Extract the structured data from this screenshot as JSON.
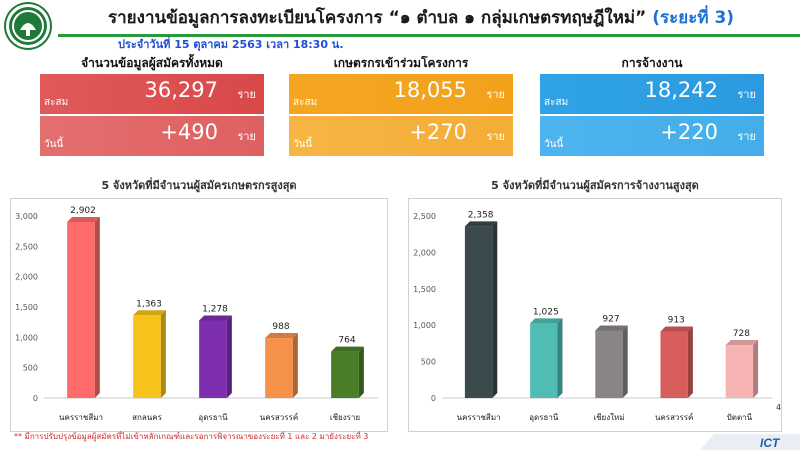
{
  "header": {
    "title": "รายงานข้อมูลการลงทะเบียนโครงการ “๑ ตำบล ๑ กลุ่มเกษตรทฤษฎีใหม่”",
    "phase": "(ระยะที่ 3)",
    "subtitle": "ประจำวันที่ 15 ตุลาคม 2563 เวลา 18:30 น."
  },
  "cards": [
    {
      "heading": "จำนวนข้อมูลผู้สมัครทั้งหมด",
      "total_label": "สะสม",
      "total": "36,297",
      "unit": "ราย",
      "today_label": "วันนี้",
      "today": "+490"
    },
    {
      "heading": "เกษตรกรเข้าร่วมโครงการ",
      "total_label": "สะสม",
      "total": "18,055",
      "unit": "ราย",
      "today_label": "วันนี้",
      "today": "+270"
    },
    {
      "heading": "การจ้างงาน",
      "total_label": "สะสม",
      "total": "18,242",
      "unit": "ราย",
      "today_label": "วันนี้",
      "today": "+220"
    }
  ],
  "chart_data": [
    {
      "type": "bar",
      "title": "5 จังหวัดที่มีจำนวนผู้สมัครเกษตรกรสูงสุด",
      "categories": [
        "นครราชสีมา",
        "สกลนคร",
        "อุดรธานี",
        "นครสวรรค์",
        "เชียงราย"
      ],
      "values": [
        2902,
        1363,
        1278,
        988,
        764
      ],
      "labels": [
        "2,902",
        "1,363",
        "1,278",
        "988",
        "764"
      ],
      "colors": [
        "#ff6b6b",
        "#f7c21a",
        "#7e2fb1",
        "#f6914a",
        "#4a7d27"
      ],
      "ylim": [
        0,
        3000
      ],
      "yticks": [
        0,
        500,
        1000,
        1500,
        2000,
        2500,
        3000
      ],
      "ytick_labels": [
        "0",
        "500",
        "1,000",
        "1,500",
        "2,000",
        "2,500",
        "3,000"
      ],
      "grid": false,
      "legend": "none"
    },
    {
      "type": "bar",
      "title": "5 จังหวัดที่มีจำนวนผู้สมัครการจ้างงานสูงสุด",
      "categories": [
        "นครราชสีมา",
        "อุดรธานี",
        "เชียงใหม่",
        "นครสวรรค์",
        "ปัตตานี"
      ],
      "values": [
        2358,
        1025,
        927,
        913,
        728
      ],
      "labels": [
        "2,358",
        "1,025",
        "927",
        "913",
        "728"
      ],
      "colors": [
        "#3b4a4c",
        "#4fbdb4",
        "#8a8585",
        "#d85d5d",
        "#f6b3b3"
      ],
      "ylim": [
        0,
        2500
      ],
      "yticks": [
        0,
        500,
        1000,
        1500,
        2000,
        2500
      ],
      "ytick_labels": [
        "0",
        "500",
        "1,000",
        "1,500",
        "2,000",
        "2,500"
      ],
      "grid": false,
      "legend": "none"
    }
  ],
  "footnote": "** มีการปรับปรุงข้อมูลผู้สมัครที่ไม่เข้าหลักเกณฑ์และรอการพิจารณาของระยะที่ 1 และ 2 มายังระยะที่ 3",
  "page_number": "4",
  "logo": {
    "name": "ministry-seal-icon",
    "color": "#1f7a3a"
  },
  "brand": {
    "text": "ICT",
    "color": "#1b5fb0"
  }
}
